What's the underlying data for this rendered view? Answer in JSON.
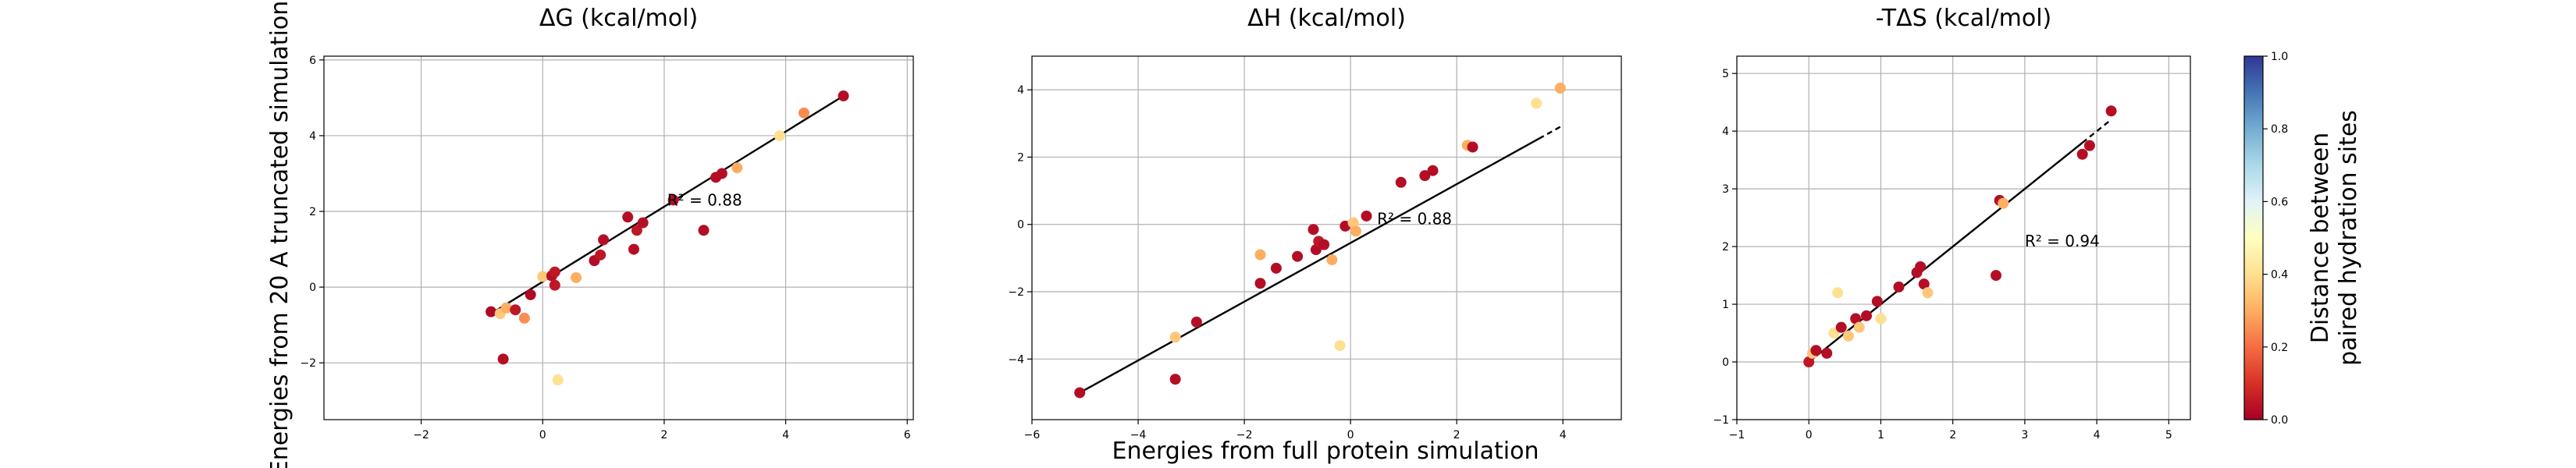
{
  "figure": {
    "ylabel": "Energies from 20 A truncated simulation",
    "xlabel": "Energies from full protein simulation"
  },
  "chart_data": [
    {
      "type": "scatter",
      "title": "ΔG (kcal/mol)",
      "xlim": [
        -3.6,
        6.1
      ],
      "ylim": [
        -3.5,
        6.1
      ],
      "xticks": [
        -2,
        0,
        2,
        4,
        6
      ],
      "yticks": [
        -2,
        0,
        2,
        4,
        6
      ],
      "grid": true,
      "annotation": {
        "text": "R² = 0.88",
        "x": 2.05,
        "y": 2.15
      },
      "fit_line": {
        "x": [
          -0.9,
          4.95
        ],
        "y": [
          -0.75,
          5.05
        ],
        "dashed_x": []
      },
      "points": [
        {
          "x": -0.85,
          "y": -0.65,
          "c": 0.02
        },
        {
          "x": -0.7,
          "y": -0.7,
          "c": 0.35
        },
        {
          "x": -0.6,
          "y": -0.55,
          "c": 0.3
        },
        {
          "x": -0.45,
          "y": -0.6,
          "c": 0.05
        },
        {
          "x": -0.3,
          "y": -0.82,
          "c": 0.25
        },
        {
          "x": -0.2,
          "y": -0.2,
          "c": 0.02
        },
        {
          "x": -0.65,
          "y": -1.9,
          "c": 0.03
        },
        {
          "x": 0.0,
          "y": 0.28,
          "c": 0.35
        },
        {
          "x": 0.15,
          "y": 0.3,
          "c": 0.03
        },
        {
          "x": 0.2,
          "y": 0.4,
          "c": 0.05
        },
        {
          "x": 0.2,
          "y": 0.05,
          "c": 0.05
        },
        {
          "x": 0.25,
          "y": -2.45,
          "c": 0.4
        },
        {
          "x": 0.55,
          "y": 0.25,
          "c": 0.3
        },
        {
          "x": 0.85,
          "y": 0.7,
          "c": 0.03
        },
        {
          "x": 0.95,
          "y": 0.85,
          "c": 0.05
        },
        {
          "x": 1.0,
          "y": 1.25,
          "c": 0.03
        },
        {
          "x": 1.4,
          "y": 1.85,
          "c": 0.03
        },
        {
          "x": 1.5,
          "y": 1.0,
          "c": 0.03
        },
        {
          "x": 1.55,
          "y": 1.5,
          "c": 0.05
        },
        {
          "x": 1.65,
          "y": 1.7,
          "c": 0.03
        },
        {
          "x": 2.15,
          "y": 2.3,
          "c": 0.03
        },
        {
          "x": 2.65,
          "y": 1.5,
          "c": 0.03
        },
        {
          "x": 2.85,
          "y": 2.9,
          "c": 0.03
        },
        {
          "x": 2.95,
          "y": 3.0,
          "c": 0.03
        },
        {
          "x": 3.2,
          "y": 3.15,
          "c": 0.3
        },
        {
          "x": 3.9,
          "y": 4.0,
          "c": 0.4
        },
        {
          "x": 4.3,
          "y": 4.6,
          "c": 0.25
        },
        {
          "x": 4.95,
          "y": 5.05,
          "c": 0.03
        }
      ]
    },
    {
      "type": "scatter",
      "title": "ΔH (kcal/mol)",
      "xlim": [
        -6,
        5.1
      ],
      "ylim": [
        -5.8,
        5
      ],
      "xticks": [
        -6,
        -4,
        -2,
        0,
        2,
        4
      ],
      "yticks": [
        -4,
        -2,
        0,
        2,
        4
      ],
      "grid": true,
      "annotation": {
        "text": "R² = 0.88",
        "x": 0.5,
        "y": 0.0
      },
      "fit_line": {
        "x": [
          -5.1,
          3.55
        ],
        "y": [
          -5.0,
          2.55
        ],
        "dashed_x": [
          3.55,
          3.95
        ]
      },
      "points": [
        {
          "x": -5.1,
          "y": -5.0,
          "c": 0.03
        },
        {
          "x": -3.3,
          "y": -4.6,
          "c": 0.03
        },
        {
          "x": -3.3,
          "y": -3.35,
          "c": 0.35
        },
        {
          "x": -2.9,
          "y": -2.9,
          "c": 0.03
        },
        {
          "x": -1.7,
          "y": -0.9,
          "c": 0.3
        },
        {
          "x": -1.7,
          "y": -1.75,
          "c": 0.03
        },
        {
          "x": -1.4,
          "y": -1.3,
          "c": 0.03
        },
        {
          "x": -1.0,
          "y": -0.95,
          "c": 0.03
        },
        {
          "x": -0.7,
          "y": -0.15,
          "c": 0.03
        },
        {
          "x": -0.65,
          "y": -0.75,
          "c": 0.03
        },
        {
          "x": -0.6,
          "y": -0.5,
          "c": 0.05
        },
        {
          "x": -0.5,
          "y": -0.6,
          "c": 0.03
        },
        {
          "x": -0.35,
          "y": -1.05,
          "c": 0.3
        },
        {
          "x": -0.2,
          "y": -3.6,
          "c": 0.4
        },
        {
          "x": -0.1,
          "y": -0.05,
          "c": 0.03
        },
        {
          "x": 0.05,
          "y": 0.05,
          "c": 0.35
        },
        {
          "x": 0.1,
          "y": -0.2,
          "c": 0.3
        },
        {
          "x": 0.3,
          "y": 0.25,
          "c": 0.03
        },
        {
          "x": 0.95,
          "y": 1.25,
          "c": 0.03
        },
        {
          "x": 1.4,
          "y": 1.45,
          "c": 0.03
        },
        {
          "x": 1.55,
          "y": 1.6,
          "c": 0.03
        },
        {
          "x": 2.2,
          "y": 2.35,
          "c": 0.3
        },
        {
          "x": 2.3,
          "y": 2.3,
          "c": 0.03
        },
        {
          "x": 3.5,
          "y": 3.6,
          "c": 0.4
        },
        {
          "x": 3.95,
          "y": 4.05,
          "c": 0.3
        }
      ]
    },
    {
      "type": "scatter",
      "title": "-TΔS (kcal/mol)",
      "xlim": [
        -1,
        5.3
      ],
      "ylim": [
        -1,
        5.3
      ],
      "xticks": [
        -1,
        0,
        1,
        2,
        3,
        4,
        5
      ],
      "yticks": [
        -1,
        0,
        1,
        2,
        3,
        4,
        5
      ],
      "grid": true,
      "annotation": {
        "text": "R² = 0.94",
        "x": 3.0,
        "y": 2.0
      },
      "fit_line": {
        "x": [
          0.0,
          3.8
        ],
        "y": [
          0.0,
          3.8
        ],
        "dashed_x": [
          3.8,
          4.2
        ]
      },
      "points": [
        {
          "x": 0.0,
          "y": 0.0,
          "c": 0.05
        },
        {
          "x": 0.05,
          "y": 0.15,
          "c": 0.35
        },
        {
          "x": 0.1,
          "y": 0.2,
          "c": 0.03
        },
        {
          "x": 0.25,
          "y": 0.15,
          "c": 0.03
        },
        {
          "x": 0.35,
          "y": 0.5,
          "c": 0.4
        },
        {
          "x": 0.4,
          "y": 1.2,
          "c": 0.4
        },
        {
          "x": 0.45,
          "y": 0.6,
          "c": 0.03
        },
        {
          "x": 0.55,
          "y": 0.45,
          "c": 0.35
        },
        {
          "x": 0.65,
          "y": 0.75,
          "c": 0.03
        },
        {
          "x": 0.7,
          "y": 0.6,
          "c": 0.35
        },
        {
          "x": 0.8,
          "y": 0.8,
          "c": 0.03
        },
        {
          "x": 0.95,
          "y": 1.05,
          "c": 0.03
        },
        {
          "x": 1.0,
          "y": 0.75,
          "c": 0.4
        },
        {
          "x": 1.25,
          "y": 1.3,
          "c": 0.03
        },
        {
          "x": 1.5,
          "y": 1.55,
          "c": 0.03
        },
        {
          "x": 1.55,
          "y": 1.65,
          "c": 0.03
        },
        {
          "x": 1.6,
          "y": 1.35,
          "c": 0.03
        },
        {
          "x": 1.65,
          "y": 1.2,
          "c": 0.35
        },
        {
          "x": 2.6,
          "y": 1.5,
          "c": 0.03
        },
        {
          "x": 2.65,
          "y": 2.8,
          "c": 0.03
        },
        {
          "x": 2.7,
          "y": 2.75,
          "c": 0.3
        },
        {
          "x": 3.8,
          "y": 3.6,
          "c": 0.03
        },
        {
          "x": 3.9,
          "y": 3.75,
          "c": 0.03
        },
        {
          "x": 4.2,
          "y": 4.35,
          "c": 0.03
        }
      ]
    }
  ],
  "colorbar": {
    "label_line1": "Distance between",
    "label_line2": "paired hydration sites",
    "ticks": [
      "0.0",
      "0.2",
      "0.4",
      "0.6",
      "0.8",
      "1.0"
    ],
    "tick_values": [
      0,
      0.2,
      0.4,
      0.6,
      0.8,
      1.0
    ],
    "range": [
      0,
      1
    ],
    "colormap": "RdYlBu",
    "colors": [
      "#a50026",
      "#d73027",
      "#f46d43",
      "#fdae61",
      "#fee090",
      "#ffffbf",
      "#e0f3f8",
      "#abd9e9",
      "#74add1",
      "#4575b4",
      "#313695"
    ]
  }
}
